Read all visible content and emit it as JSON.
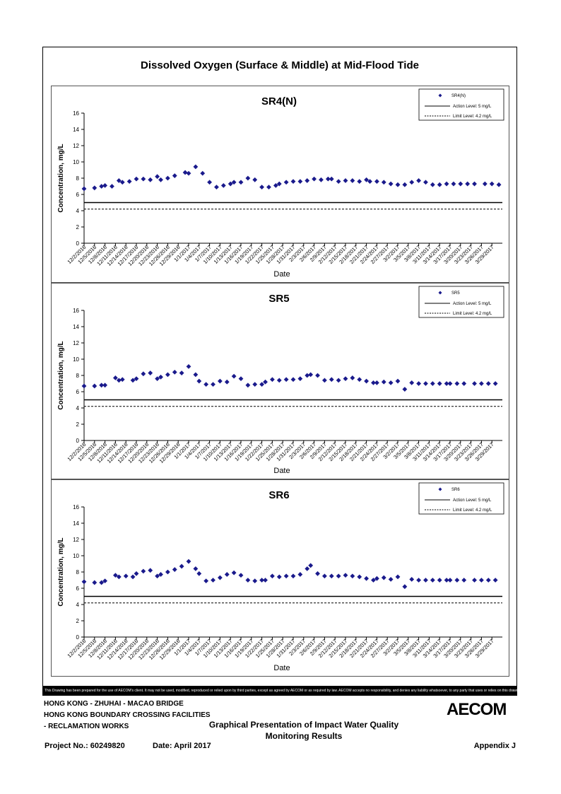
{
  "page": {
    "title": "Dissolved Oxygen (Surface & Middle) at Mid-Flood Tide",
    "disclaimer": "This Drawing has been prepared for the use of AECOM's client. It may not be used, modified, reproduced or relied upon by third parties, except as agreed by AECOM or as required by law. AECOM accepts no responsibility, and denies any liability whatsoever, to any party that uses or relies on this drawing without AECOM's express written consent.",
    "project_lines": [
      "HONG KONG - ZHUHAI - MACAO BRIDGE",
      "HONG KONG BOUNDARY CROSSING FACILITIES",
      "- RECLAMATION WORKS"
    ],
    "sheet_title_1": "Graphical Presentation of Impact Water Quality",
    "sheet_title_2": "Monitoring Results",
    "project_no": "Project No.: 60249820",
    "date": "Date: April 2017",
    "appendix": "Appendix J",
    "logo": "AECOM"
  },
  "chart_data": [
    {
      "type": "scatter",
      "title": "SR4(N)",
      "xlabel": "Date",
      "ylabel": "Concentration, mg/L",
      "ylim": [
        0,
        16
      ],
      "yticks": [
        0,
        2,
        4,
        6,
        8,
        10,
        12,
        14,
        16
      ],
      "legend_position": "top-right",
      "x_tick_labels": [
        "12/2/2016",
        "12/5/2016",
        "12/8/2016",
        "12/11/2016",
        "12/14/2016",
        "12/17/2016",
        "12/20/2016",
        "12/23/2016",
        "12/26/2016",
        "12/29/2016",
        "1/1/2017",
        "1/4/2017",
        "1/7/2017",
        "1/10/2017",
        "1/13/2017",
        "1/16/2017",
        "1/19/2017",
        "1/22/2017",
        "1/25/2017",
        "1/28/2017",
        "1/31/2017",
        "2/3/2017",
        "2/6/2017",
        "2/9/2017",
        "2/12/2017",
        "2/15/2017",
        "2/18/2017",
        "2/21/2017",
        "2/24/2017",
        "2/27/2017",
        "3/2/2017",
        "3/5/2017",
        "3/8/2017",
        "3/11/2017",
        "3/14/2017",
        "3/17/2017",
        "3/20/2017",
        "3/23/2017",
        "3/26/2017",
        "3/29/2017"
      ],
      "series": [
        {
          "name": "SR4(N)",
          "color": "#1a1a8c",
          "x": [
            "12/2/2016",
            "12/5/2016",
            "12/7/2016",
            "12/8/2016",
            "12/10/2016",
            "12/12/2016",
            "12/13/2016",
            "12/15/2016",
            "12/17/2016",
            "12/19/2016",
            "12/21/2016",
            "12/23/2016",
            "12/24/2016",
            "12/26/2016",
            "12/28/2016",
            "12/31/2016",
            "1/1/2017",
            "1/3/2017",
            "1/5/2017",
            "1/7/2017",
            "1/9/2017",
            "1/11/2017",
            "1/13/2017",
            "1/14/2017",
            "1/16/2017",
            "1/18/2017",
            "1/20/2017",
            "1/22/2017",
            "1/24/2017",
            "1/26/2017",
            "1/27/2017",
            "1/29/2017",
            "1/31/2017",
            "2/2/2017",
            "2/4/2017",
            "2/6/2017",
            "2/8/2017",
            "2/10/2017",
            "2/11/2017",
            "2/13/2017",
            "2/15/2017",
            "2/17/2017",
            "2/19/2017",
            "2/21/2017",
            "2/22/2017",
            "2/24/2017",
            "2/26/2017",
            "2/28/2017",
            "3/2/2017",
            "3/4/2017",
            "3/6/2017",
            "3/8/2017",
            "3/10/2017",
            "3/12/2017",
            "3/14/2017",
            "3/16/2017",
            "3/18/2017",
            "3/20/2017",
            "3/22/2017",
            "3/24/2017",
            "3/27/2017",
            "3/29/2017",
            "3/31/2017"
          ],
          "y": [
            6.7,
            6.8,
            7.0,
            7.1,
            7.0,
            7.7,
            7.5,
            7.6,
            7.9,
            7.9,
            7.8,
            8.2,
            7.8,
            8.0,
            8.3,
            8.7,
            8.6,
            9.4,
            8.6,
            7.5,
            6.9,
            7.1,
            7.3,
            7.5,
            7.5,
            8.0,
            7.8,
            6.9,
            6.9,
            7.1,
            7.3,
            7.5,
            7.6,
            7.6,
            7.7,
            7.9,
            7.8,
            7.9,
            7.9,
            7.6,
            7.7,
            7.7,
            7.6,
            7.8,
            7.6,
            7.6,
            7.5,
            7.3,
            7.2,
            7.2,
            7.5,
            7.7,
            7.5,
            7.2,
            7.2,
            7.3,
            7.3,
            7.3,
            7.3,
            7.3,
            7.3,
            7.3,
            7.2
          ]
        }
      ],
      "reference_lines": [
        {
          "name": "Action Level: 5 mg/L",
          "value": 5,
          "style": "solid"
        },
        {
          "name": "Limit Level: 4.2 mg/L",
          "value": 4.2,
          "style": "dashed"
        }
      ]
    },
    {
      "type": "scatter",
      "title": "SR5",
      "xlabel": "Date",
      "ylabel": "Concentration, mg/L",
      "ylim": [
        0,
        16
      ],
      "yticks": [
        0,
        2,
        4,
        6,
        8,
        10,
        12,
        14,
        16
      ],
      "legend_position": "top-right",
      "x_tick_labels": [
        "12/2/2016",
        "12/5/2016",
        "12/8/2016",
        "12/11/2016",
        "12/14/2016",
        "12/17/2016",
        "12/20/2016",
        "12/23/2016",
        "12/26/2016",
        "12/29/2016",
        "1/1/2017",
        "1/4/2017",
        "1/7/2017",
        "1/10/2017",
        "1/13/2017",
        "1/16/2017",
        "1/19/2017",
        "1/22/2017",
        "1/25/2017",
        "1/28/2017",
        "1/31/2017",
        "2/3/2017",
        "2/6/2017",
        "2/9/2017",
        "2/12/2017",
        "2/15/2017",
        "2/18/2017",
        "2/21/2017",
        "2/24/2017",
        "2/27/2017",
        "3/2/2017",
        "3/5/2017",
        "3/8/2017",
        "3/11/2017",
        "3/14/2017",
        "3/17/2017",
        "3/20/2017",
        "3/23/2017",
        "3/26/2017",
        "3/29/2017"
      ],
      "series": [
        {
          "name": "SR5",
          "color": "#1a1a8c",
          "x": [
            "12/2/2016",
            "12/5/2016",
            "12/7/2016",
            "12/8/2016",
            "12/11/2016",
            "12/12/2016",
            "12/13/2016",
            "12/16/2016",
            "12/17/2016",
            "12/19/2016",
            "12/21/2016",
            "12/23/2016",
            "12/24/2016",
            "12/26/2016",
            "12/28/2016",
            "12/30/2016",
            "1/1/2017",
            "1/3/2017",
            "1/4/2017",
            "1/6/2017",
            "1/8/2017",
            "1/10/2017",
            "1/12/2017",
            "1/14/2017",
            "1/16/2017",
            "1/18/2017",
            "1/20/2017",
            "1/22/2017",
            "1/23/2017",
            "1/25/2017",
            "1/27/2017",
            "1/29/2017",
            "1/31/2017",
            "2/2/2017",
            "2/4/2017",
            "2/5/2017",
            "2/7/2017",
            "2/9/2017",
            "2/11/2017",
            "2/13/2017",
            "2/15/2017",
            "2/17/2017",
            "2/19/2017",
            "2/21/2017",
            "2/23/2017",
            "2/24/2017",
            "2/26/2017",
            "2/28/2017",
            "3/2/2017",
            "3/4/2017",
            "3/6/2017",
            "3/8/2017",
            "3/10/2017",
            "3/12/2017",
            "3/14/2017",
            "3/16/2017",
            "3/17/2017",
            "3/19/2017",
            "3/21/2017",
            "3/24/2017",
            "3/26/2017",
            "3/28/2017",
            "3/30/2017"
          ],
          "y": [
            6.7,
            6.7,
            6.8,
            6.8,
            7.7,
            7.4,
            7.5,
            7.4,
            7.6,
            8.2,
            8.3,
            7.6,
            7.8,
            8.1,
            8.4,
            8.3,
            9.1,
            8.1,
            7.3,
            6.9,
            6.9,
            7.3,
            7.2,
            7.9,
            7.6,
            6.8,
            6.9,
            6.9,
            7.2,
            7.5,
            7.4,
            7.5,
            7.5,
            7.6,
            8.0,
            8.1,
            8.0,
            7.4,
            7.5,
            7.4,
            7.6,
            7.7,
            7.5,
            7.3,
            7.1,
            7.1,
            7.2,
            7.1,
            7.3,
            6.3,
            7.1,
            7.0,
            7.0,
            7.0,
            7.0,
            7.0,
            7.0,
            7.0,
            7.0,
            7.0,
            7.0,
            7.0,
            7.0
          ]
        }
      ],
      "reference_lines": [
        {
          "name": "Action Level: 5 mg/L",
          "value": 5,
          "style": "solid"
        },
        {
          "name": "Limit Level: 4.2 mg/L",
          "value": 4.2,
          "style": "dashed"
        }
      ]
    },
    {
      "type": "scatter",
      "title": "SR6",
      "xlabel": "Date",
      "ylabel": "Concentration, mg/L",
      "ylim": [
        0,
        16
      ],
      "yticks": [
        0,
        2,
        4,
        6,
        8,
        10,
        12,
        14,
        16
      ],
      "legend_position": "top-right",
      "x_tick_labels": [
        "12/2/2016",
        "12/5/2016",
        "12/8/2016",
        "12/11/2016",
        "12/14/2016",
        "12/17/2016",
        "12/20/2016",
        "12/23/2016",
        "12/26/2016",
        "12/29/2016",
        "1/1/2017",
        "1/4/2017",
        "1/7/2017",
        "1/10/2017",
        "1/13/2017",
        "1/16/2017",
        "1/19/2017",
        "1/22/2017",
        "1/25/2017",
        "1/28/2017",
        "1/31/2017",
        "2/3/2017",
        "2/6/2017",
        "2/9/2017",
        "2/12/2017",
        "2/15/2017",
        "2/18/2017",
        "2/21/2017",
        "2/24/2017",
        "2/27/2017",
        "3/2/2017",
        "3/5/2017",
        "3/8/2017",
        "3/11/2017",
        "3/14/2017",
        "3/17/2017",
        "3/20/2017",
        "3/23/2017",
        "3/26/2017",
        "3/29/2017"
      ],
      "series": [
        {
          "name": "SR6",
          "color": "#1a1a8c",
          "x": [
            "12/2/2016",
            "12/5/2016",
            "12/7/2016",
            "12/8/2016",
            "12/11/2016",
            "12/12/2016",
            "12/14/2016",
            "12/16/2016",
            "12/17/2016",
            "12/19/2016",
            "12/21/2016",
            "12/23/2016",
            "12/24/2016",
            "12/26/2016",
            "12/28/2016",
            "12/30/2016",
            "1/1/2017",
            "1/3/2017",
            "1/4/2017",
            "1/6/2017",
            "1/8/2017",
            "1/10/2017",
            "1/12/2017",
            "1/14/2017",
            "1/16/2017",
            "1/18/2017",
            "1/20/2017",
            "1/22/2017",
            "1/23/2017",
            "1/25/2017",
            "1/27/2017",
            "1/29/2017",
            "1/31/2017",
            "2/2/2017",
            "2/4/2017",
            "2/5/2017",
            "2/7/2017",
            "2/9/2017",
            "2/11/2017",
            "2/13/2017",
            "2/15/2017",
            "2/17/2017",
            "2/19/2017",
            "2/21/2017",
            "2/23/2017",
            "2/24/2017",
            "2/26/2017",
            "2/28/2017",
            "3/2/2017",
            "3/4/2017",
            "3/6/2017",
            "3/8/2017",
            "3/10/2017",
            "3/12/2017",
            "3/14/2017",
            "3/16/2017",
            "3/17/2017",
            "3/19/2017",
            "3/21/2017",
            "3/24/2017",
            "3/26/2017",
            "3/28/2017",
            "3/30/2017"
          ],
          "y": [
            6.8,
            6.7,
            6.7,
            6.9,
            7.6,
            7.4,
            7.5,
            7.4,
            7.8,
            8.1,
            8.2,
            7.5,
            7.7,
            8.0,
            8.3,
            8.7,
            9.3,
            8.4,
            7.8,
            6.9,
            7.0,
            7.3,
            7.7,
            7.9,
            7.6,
            7.0,
            6.9,
            7.0,
            7.0,
            7.5,
            7.4,
            7.5,
            7.5,
            7.7,
            8.4,
            8.8,
            7.8,
            7.5,
            7.5,
            7.5,
            7.6,
            7.5,
            7.4,
            7.2,
            7.0,
            7.2,
            7.3,
            7.1,
            7.4,
            6.2,
            7.1,
            7.0,
            7.0,
            7.0,
            7.0,
            7.0,
            7.0,
            7.0,
            7.0,
            7.0,
            7.0,
            7.0,
            7.0
          ]
        }
      ],
      "reference_lines": [
        {
          "name": "Action Level: 5 mg/L",
          "value": 5,
          "style": "solid"
        },
        {
          "name": "Limit Level: 4.2 mg/L",
          "value": 4.2,
          "style": "dashed"
        }
      ]
    }
  ]
}
